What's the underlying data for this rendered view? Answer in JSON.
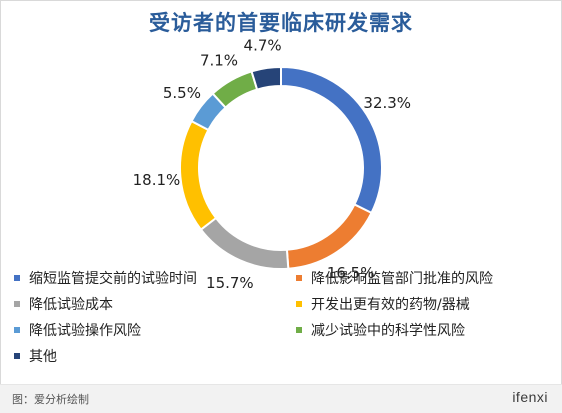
{
  "chart_data": {
    "type": "pie",
    "title": "受访者的首要临床研发需求",
    "categories": [
      "缩短监管提交前的试验时间",
      "降低影响监管部门批准的风险",
      "降低试验成本",
      "开发出更有效的药物/器械",
      "降低试验操作风险",
      "减少试验中的科学性风险",
      "其他"
    ],
    "values": [
      32.3,
      16.5,
      15.7,
      18.1,
      5.5,
      7.1,
      4.7
    ],
    "value_labels": [
      "32.3%",
      "16.5%",
      "15.7%",
      "18.1%",
      "5.5%",
      "7.1%",
      "4.7%"
    ],
    "colors": [
      "#4472c4",
      "#ed7d31",
      "#a5a5a5",
      "#ffc000",
      "#5b9bd5",
      "#70ad47",
      "#264478"
    ],
    "legend_position": "bottom"
  },
  "footer": {
    "note": "图：爱分析绘制",
    "logo": "ifenxi"
  }
}
